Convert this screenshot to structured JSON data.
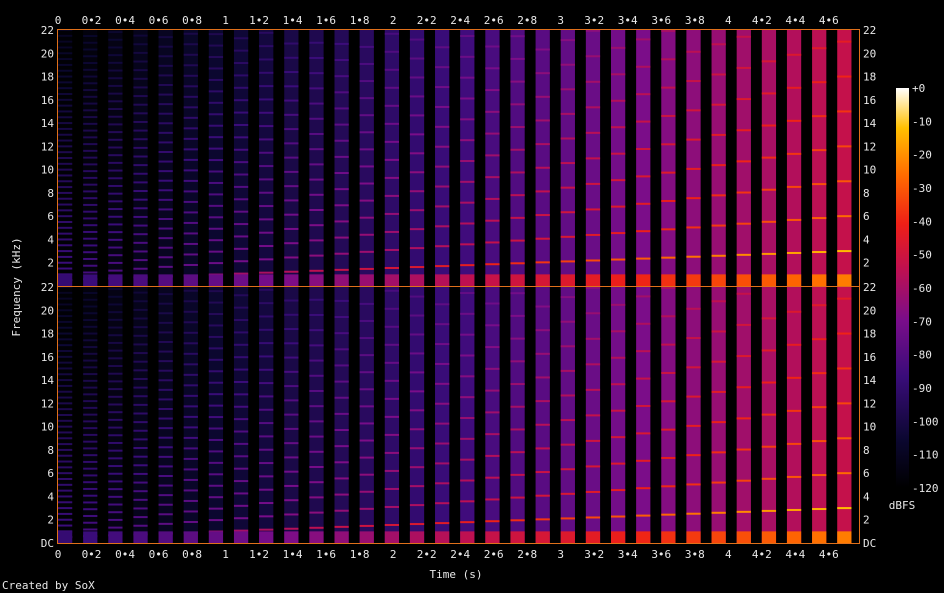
{
  "chart_data": {
    "type": "heatmap",
    "footer": "Created by SoX",
    "xlabel": "Time (s)",
    "ylabel": "Frequency (kHz)",
    "xlim": [
      0,
      4.78
    ],
    "ylim": [
      0,
      22
    ],
    "x_ticks": [
      "0",
      "0•2",
      "0•4",
      "0•6",
      "0•8",
      "1",
      "1•2",
      "1•4",
      "1•6",
      "1•8",
      "2",
      "2•2",
      "2•4",
      "2•6",
      "2•8",
      "3",
      "3•2",
      "3•4",
      "3•6",
      "3•8",
      "4",
      "4•2",
      "4•4",
      "4•6"
    ],
    "y_ticks_top": [
      "2",
      "4",
      "6",
      "8",
      "10",
      "12",
      "14",
      "16",
      "18",
      "20",
      "22"
    ],
    "y_ticks_bottom": [
      "DC",
      "2",
      "4",
      "6",
      "8",
      "10",
      "12",
      "14",
      "16",
      "18",
      "20",
      "22"
    ],
    "colorbar": {
      "label": "dBFS",
      "range": [
        -120,
        0
      ],
      "ticks": [
        "+0",
        "-10",
        "-20",
        "-30",
        "-40",
        "-50",
        "-60",
        "-70",
        "-80",
        "-90",
        "-100",
        "-110",
        "-120"
      ]
    },
    "channels": [
      {
        "burst_count": 32,
        "burst_period_s": 0.15,
        "burst_duration_s": 0.085,
        "fundamental_khz_start": 0.5,
        "fundamental_khz_end": 3.0,
        "level_db_start": -80,
        "level_db_end": -15
      },
      {
        "burst_count": 32,
        "burst_period_s": 0.15,
        "burst_duration_s": 0.085,
        "fundamental_khz_start": 0.5,
        "fundamental_khz_end": 3.0,
        "level_db_start": -80,
        "level_db_end": -15
      }
    ]
  }
}
